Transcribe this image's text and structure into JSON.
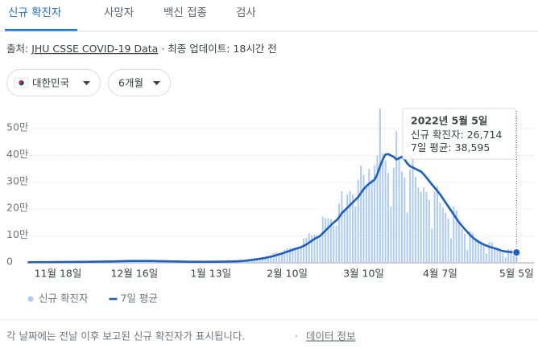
{
  "tabs": [
    "신규 확진자",
    "사망자",
    "백신 접종",
    "검사"
  ],
  "source": {
    "prefix": "출처:",
    "link": "JHU CSSE COVID-19 Data",
    "updated": "· 최종 업데이트: 18시간 전"
  },
  "filters": [
    "대한민국",
    "6개월"
  ],
  "chart_data": {
    "type": "combo",
    "categories": [
      null,
      null,
      null,
      null,
      null,
      null,
      null,
      null,
      null,
      null,
      null,
      "11월 18일",
      null,
      null,
      null,
      null,
      null,
      null,
      null,
      null,
      null,
      null,
      null,
      null,
      null,
      null,
      null,
      null,
      null,
      null,
      null,
      null,
      null,
      null,
      null,
      null,
      null,
      null,
      null,
      "12월 16일",
      null,
      null,
      null,
      null,
      null,
      null,
      null,
      null,
      null,
      null,
      null,
      null,
      null,
      null,
      null,
      null,
      null,
      null,
      null,
      null,
      null,
      null,
      null,
      null,
      null,
      null,
      null,
      "1월 13일",
      null,
      null,
      null,
      null,
      null,
      null,
      null,
      null,
      null,
      null,
      null,
      null,
      null,
      null,
      null,
      null,
      null,
      null,
      null,
      null,
      null,
      null,
      null,
      null,
      null,
      null,
      null,
      "2월 10일",
      null,
      null,
      null,
      null,
      null,
      null,
      null,
      null,
      null,
      null,
      null,
      null,
      null,
      null,
      null,
      null,
      null,
      null,
      null,
      null,
      null,
      null,
      null,
      null,
      null,
      null,
      null,
      "3월 10일",
      null,
      null,
      null,
      null,
      null,
      null,
      null,
      null,
      null,
      null,
      null,
      null,
      null,
      null,
      null,
      null,
      null,
      null,
      null,
      null,
      null,
      null,
      null,
      null,
      null,
      null,
      null,
      "4월 7일",
      null,
      null,
      null,
      null,
      null,
      null,
      null,
      null,
      null,
      null,
      null,
      null,
      null,
      null,
      null,
      null,
      null,
      null,
      null,
      null,
      null,
      null,
      null,
      null,
      null,
      null,
      null,
      "5월 5일"
    ],
    "series": [
      {
        "name": "신규 확진자",
        "type": "bar",
        "color": "#aecbfa",
        "values": [
          2224,
          1759,
          2425,
          2520,
          2368,
          2324,
          2419,
          2006,
          2125,
          3187,
          3292,
          3034,
          3206,
          3120,
          2827,
          2699,
          4115,
          4088,
          3938,
          4068,
          3899,
          3309,
          3032,
          5123,
          5266,
          5352,
          4944,
          5128,
          5352,
          4325,
          4954,
          7175,
          7102,
          7022,
          7622,
          6689,
          5817,
          7850,
          7622,
          7435,
          7314,
          7313,
          6233,
          5318,
          7456,
          7455,
          6919,
          6233,
          5842,
          5419,
          4207,
          5409,
          5037,
          4875,
          4416,
          3833,
          3129,
          3024,
          4443,
          4126,
          4444,
          3717,
          3510,
          3376,
          3007,
          4388,
          4542,
          4167,
          4542,
          4167,
          4194,
          3859,
          5805,
          5287,
          6603,
          6769,
          7009,
          7630,
          7513,
          8571,
          13012,
          14518,
          16096,
          17542,
          17079,
          18342,
          20270,
          18343,
          22907,
          27443,
          36362,
          38691,
          35286,
          36719,
          49567,
          54122,
          54941,
          53926,
          56431,
          54619,
          57177,
          90443,
          93135,
          109831,
          102211,
          104829,
          95362,
          99573,
          171452,
          165890,
          166209,
          163566,
          139626,
          138993,
          219241,
          266853,
          198803,
          254327,
          266853,
          254327,
          210716,
          309790,
          362338,
          327549,
          282987,
          350190,
          309790,
          362338,
          400741,
          574000,
          407017,
          381454,
          334708,
          209169,
          353980,
          490881,
          395598,
          339514,
          318130,
          187213,
          347554,
          424641,
          320743,
          280273,
          264171,
          280273,
          264171,
          234301,
          127190,
          266135,
          286294,
          224820,
          205333,
          185566,
          164481,
          90928,
          210755,
          195419,
          148443,
          125846,
          107916,
          47743,
          118504,
          111319,
          90867,
          85296,
          81058,
          64689,
          34370,
          76787,
          75449,
          57464,
          50568,
          49063,
          37771,
          20084,
          51131,
          49064,
          42296,
          26714
        ]
      },
      {
        "name": "7일 평균",
        "type": "line",
        "color": "#1a5fc8",
        "values": [
          2200,
          2200,
          2250,
          2300,
          2350,
          2380,
          2400,
          2450,
          2500,
          2600,
          2700,
          2800,
          2900,
          3000,
          3050,
          3100,
          3200,
          3300,
          3400,
          3500,
          3600,
          3650,
          3700,
          3850,
          4000,
          4150,
          4300,
          4450,
          4600,
          4800,
          5000,
          5250,
          5500,
          5750,
          6000,
          6200,
          6400,
          6600,
          6800,
          6900,
          7000,
          7050,
          7100,
          7050,
          6950,
          6850,
          6700,
          6500,
          6300,
          6100,
          5900,
          5700,
          5450,
          5200,
          5000,
          4800,
          4600,
          4400,
          4200,
          4050,
          3950,
          3900,
          3850,
          3800,
          3750,
          3750,
          3800,
          3850,
          3950,
          4050,
          4150,
          4250,
          4400,
          4600,
          4850,
          5150,
          5500,
          5900,
          6400,
          7100,
          8000,
          9200,
          10500,
          12000,
          13500,
          15000,
          16800,
          18500,
          20500,
          22800,
          25500,
          28500,
          31500,
          34500,
          38000,
          41500,
          45000,
          48500,
          52000,
          55000,
          58000,
          63000,
          68000,
          75000,
          82000,
          89000,
          95000,
          100000,
          110000,
          120000,
          130000,
          140000,
          150000,
          158000,
          170000,
          185000,
          195000,
          205000,
          215000,
          225000,
          235000,
          245000,
          260000,
          275000,
          285000,
          295000,
          302000,
          310000,
          330000,
          360000,
          385000,
          404000,
          405000,
          400000,
          395000,
          385000,
          390000,
          395000,
          385000,
          370000,
          360000,
          355000,
          350000,
          345000,
          340000,
          330000,
          318000,
          305000,
          292000,
          280000,
          268000,
          255000,
          240000,
          225000,
          210000,
          195000,
          180000,
          165000,
          150000,
          138000,
          126000,
          115000,
          104000,
          94000,
          86000,
          79000,
          73000,
          68000,
          64000,
          60000,
          57000,
          54000,
          51000,
          47000,
          44000,
          42000,
          41000,
          40000,
          39500,
          38595
        ]
      }
    ],
    "ylim": [
      0,
      590000
    ],
    "yticks": [
      0,
      {
        "value": 100000,
        "label": "10만"
      },
      {
        "value": 200000,
        "label": "20만"
      },
      {
        "value": 300000,
        "label": "30만"
      },
      {
        "value": 400000,
        "label": "40만"
      },
      {
        "value": 500000,
        "label": "50만"
      }
    ],
    "grid": true,
    "legend": "bottom-left",
    "tooltip": {
      "title": "2022년 5월 5일",
      "rows": [
        {
          "label": "신규 확진자:",
          "value": "26,714"
        },
        {
          "label": "7일 평균:",
          "value": "38,595"
        }
      ]
    }
  },
  "footer": {
    "note": "각 날짜에는 전날 이후 보고된 신규 확진자가 표시됩니다.",
    "separator": "·",
    "link": "데이터 정보"
  }
}
